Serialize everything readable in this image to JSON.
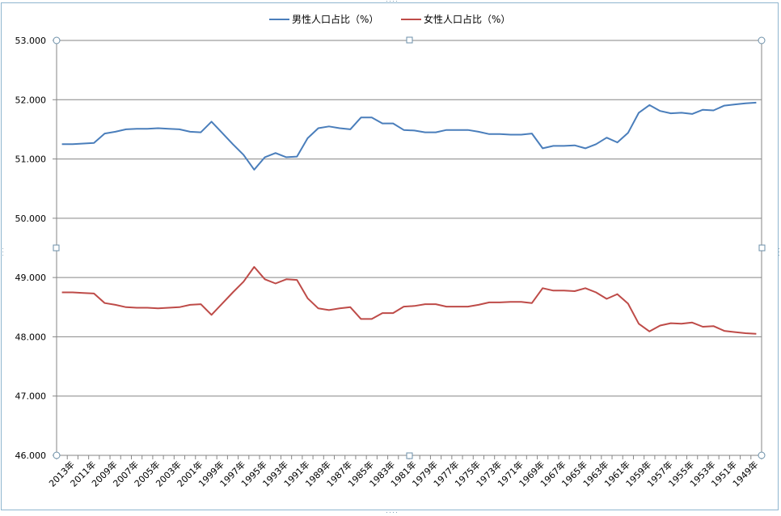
{
  "chart_data": {
    "type": "line",
    "title": "",
    "xlabel": "",
    "ylabel": "",
    "ylim": [
      46,
      53
    ],
    "y_ticks": [
      "53.000",
      "52.000",
      "51.000",
      "50.000",
      "49.000",
      "48.000",
      "47.000",
      "46.000"
    ],
    "grid": true,
    "legend_position": "top",
    "x_order": "descending",
    "x": [
      2014,
      2013,
      2012,
      2011,
      2010,
      2009,
      2008,
      2007,
      2006,
      2005,
      2004,
      2003,
      2002,
      2001,
      2000,
      1999,
      1998,
      1997,
      1996,
      1995,
      1994,
      1993,
      1992,
      1991,
      1990,
      1989,
      1988,
      1987,
      1986,
      1985,
      1984,
      1983,
      1982,
      1981,
      1980,
      1979,
      1978,
      1977,
      1976,
      1975,
      1974,
      1973,
      1972,
      1971,
      1970,
      1969,
      1968,
      1967,
      1966,
      1965,
      1964,
      1963,
      1962,
      1961,
      1960,
      1959,
      1958,
      1957,
      1956,
      1955,
      1954,
      1953,
      1952,
      1951,
      1950,
      1949
    ],
    "x_tick_labels": [
      "2013年",
      "2011年",
      "2009年",
      "2007年",
      "2005年",
      "2003年",
      "2001年",
      "1999年",
      "1997年",
      "1995年",
      "1993年",
      "1991年",
      "1989年",
      "1987年",
      "1985年",
      "1983年",
      "1981年",
      "1979年",
      "1977年",
      "1975年",
      "1973年",
      "1971年",
      "1969年",
      "1967年",
      "1965年",
      "1963年",
      "1961年",
      "1959年",
      "1957年",
      "1955年",
      "1953年",
      "1951年",
      "1949年"
    ],
    "series": [
      {
        "name": "男性人口占比（%）",
        "color": "#4a7ebb",
        "values": [
          51.25,
          51.25,
          51.26,
          51.27,
          51.43,
          51.46,
          51.5,
          51.51,
          51.51,
          51.52,
          51.51,
          51.5,
          51.46,
          51.45,
          51.63,
          51.44,
          51.25,
          51.07,
          50.82,
          51.03,
          51.1,
          51.03,
          51.04,
          51.35,
          51.52,
          51.55,
          51.52,
          51.5,
          51.7,
          51.7,
          51.6,
          51.6,
          51.49,
          51.48,
          51.45,
          51.45,
          51.49,
          51.49,
          51.49,
          51.46,
          51.42,
          51.42,
          51.41,
          51.41,
          51.43,
          51.18,
          51.22,
          51.22,
          51.23,
          51.18,
          51.25,
          51.36,
          51.28,
          51.44,
          51.78,
          51.91,
          51.81,
          51.77,
          51.78,
          51.76,
          51.83,
          51.82,
          51.9,
          51.92,
          51.94,
          51.95
        ]
      },
      {
        "name": "女性人口占比（%）",
        "color": "#be4b48",
        "values": [
          48.75,
          48.75,
          48.74,
          48.73,
          48.57,
          48.54,
          48.5,
          48.49,
          48.49,
          48.48,
          48.49,
          48.5,
          48.54,
          48.55,
          48.37,
          48.56,
          48.75,
          48.93,
          49.18,
          48.97,
          48.9,
          48.97,
          48.96,
          48.65,
          48.48,
          48.45,
          48.48,
          48.5,
          48.3,
          48.3,
          48.4,
          48.4,
          48.51,
          48.52,
          48.55,
          48.55,
          48.51,
          48.51,
          48.51,
          48.54,
          48.58,
          48.58,
          48.59,
          48.59,
          48.57,
          48.82,
          48.78,
          48.78,
          48.77,
          48.82,
          48.75,
          48.64,
          48.72,
          48.56,
          48.22,
          48.09,
          48.19,
          48.23,
          48.22,
          48.24,
          48.17,
          48.18,
          48.1,
          48.08,
          48.06,
          48.05
        ]
      }
    ]
  }
}
